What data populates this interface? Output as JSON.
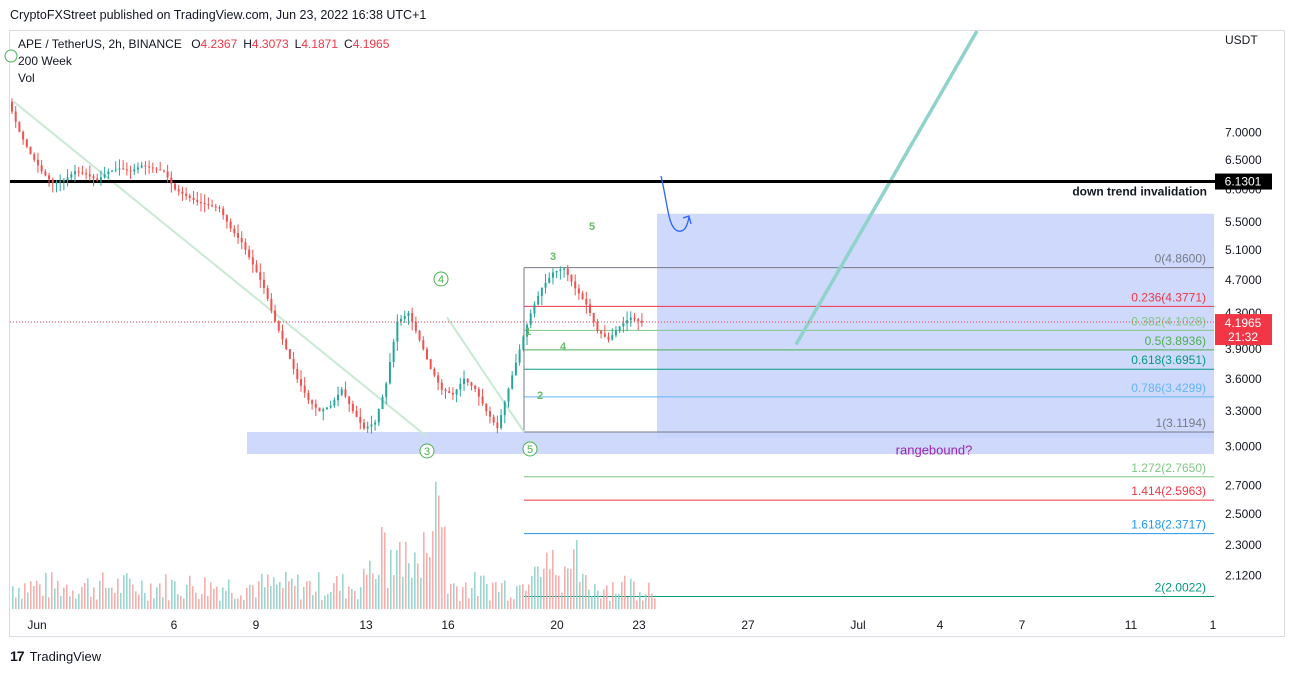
{
  "header": {
    "publisher": "CryptoFXStreet published on TradingView.com, Jun 23, 2022 16:38 UTC+1"
  },
  "legend": {
    "symbol": "APE / TetherUS, 2h, BINANCE",
    "ohlc": [
      {
        "label": "O",
        "value": "4.2367"
      },
      {
        "label": "H",
        "value": "4.3073"
      },
      {
        "label": "L",
        "value": "4.1871"
      },
      {
        "label": "C",
        "value": "4.1965"
      }
    ],
    "indicators": [
      "200 Week",
      "Vol"
    ]
  },
  "footer": {
    "brand": "TradingView"
  },
  "colors": {
    "up": "#26a69a",
    "down": "#ef5350",
    "fib_zone": "#c5d2fb",
    "trend": "#8fd3cb",
    "price_tag": "#f23645"
  },
  "chart_data": {
    "type": "candlestick",
    "currency_label": "USDT",
    "y_scale": "log",
    "ylim": [
      1.92,
      9.2
    ],
    "y_ticks": [
      "7.0000",
      "6.5000",
      "6.0000",
      "5.5000",
      "5.1000",
      "4.7000",
      "4.3000",
      "3.9000",
      "3.6000",
      "3.3000",
      "3.0000",
      "2.7000",
      "2.5000",
      "2.3000",
      "2.1200"
    ],
    "x_ticks": [
      "Jun",
      "6",
      "9",
      "13",
      "16",
      "20",
      "23",
      "27",
      "Jul",
      "4",
      "7",
      "11",
      "1"
    ],
    "price_tag": {
      "value": "4.1965",
      "countdown": "21:32"
    },
    "invalidation": {
      "value": "6.1301",
      "label": "down trend invalidation"
    },
    "fibonacci": [
      {
        "ratio": "0",
        "price": "4.8600",
        "label": "0(4.8600)"
      },
      {
        "ratio": "0.236",
        "price": "4.3771",
        "label": "0.236(4.3771)"
      },
      {
        "ratio": "0.382",
        "price": "4.1028",
        "label": "0.382(4.1028)"
      },
      {
        "ratio": "0.5",
        "price": "3.8936",
        "label": "0.5(3.8936)"
      },
      {
        "ratio": "0.618",
        "price": "3.6951",
        "label": "0.618(3.6951)"
      },
      {
        "ratio": "0.786",
        "price": "3.4299",
        "label": "0.786(3.4299)"
      },
      {
        "ratio": "1",
        "price": "3.1194",
        "label": "1(3.1194)"
      },
      {
        "ratio": "1.272",
        "price": "2.7650",
        "label": "1.272(2.7650)"
      },
      {
        "ratio": "1.414",
        "price": "2.5963",
        "label": "1.414(2.5963)"
      },
      {
        "ratio": "1.618",
        "price": "2.3717",
        "label": "1.618(2.3717)"
      },
      {
        "ratio": "2",
        "price": "2.0022",
        "label": "2(2.0022)"
      }
    ],
    "zone_label": "rangebound?",
    "wave_labels": {
      "circled": [
        "4",
        "3",
        "5"
      ],
      "minor": [
        "1",
        "2",
        "3",
        "4",
        "5"
      ]
    },
    "series": [
      {
        "name": "APE/USDT",
        "kind": "candles",
        "close_path": [
          7.6,
          7.0,
          6.6,
          6.3,
          6.1,
          6.15,
          6.3,
          6.25,
          6.15,
          6.3,
          6.35,
          6.3,
          6.4,
          6.35,
          6.3,
          6.0,
          5.9,
          5.8,
          5.75,
          5.7,
          5.4,
          5.2,
          4.9,
          4.6,
          4.2,
          3.9,
          3.6,
          3.4,
          3.3,
          3.35,
          3.5,
          3.3,
          3.15,
          3.2,
          3.55,
          4.2,
          4.3,
          4.0,
          3.7,
          3.5,
          3.45,
          3.6,
          3.5,
          3.3,
          3.15,
          3.5,
          3.9,
          4.3,
          4.6,
          4.8,
          4.85,
          4.6,
          4.4,
          4.1,
          4.0,
          4.15,
          4.25,
          4.19
        ]
      }
    ]
  }
}
